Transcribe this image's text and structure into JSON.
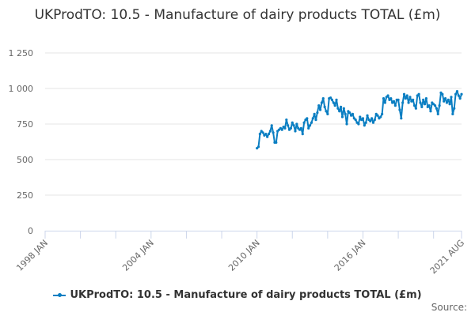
{
  "chart_data": {
    "type": "line",
    "title": "UKProdTO: 10.5 - Manufacture of dairy products TOTAL (£m)",
    "xlabel": "",
    "ylabel": "",
    "xlim": [
      1998.0,
      2021.5833
    ],
    "ylim": [
      0,
      1250
    ],
    "y_ticks": [
      0,
      250,
      500,
      750,
      1000,
      1250
    ],
    "y_tick_labels": [
      "0",
      "250",
      "500",
      "750",
      "1 000",
      "1 250"
    ],
    "x_tick_labels": [
      {
        "label": "1998 JAN",
        "x": 1998.0
      },
      {
        "label": "2004 JAN",
        "x": 2004.0
      },
      {
        "label": "2010 JAN",
        "x": 2010.0
      },
      {
        "label": "2016 JAN",
        "x": 2016.0
      },
      {
        "label": "2021 AUG",
        "x": 2021.5833
      }
    ],
    "grid": true,
    "legend": "bottom",
    "series": [
      {
        "name": "UKProdTO: 10.5 - Manufacture of dairy products TOTAL (£m)",
        "color": "#0a7ec2",
        "start": "2010 JAN",
        "start_x": 2010.0,
        "frequency": "monthly",
        "values": [
          580,
          590,
          680,
          700,
          690,
          670,
          680,
          660,
          680,
          700,
          740,
          690,
          620,
          620,
          700,
          710,
          720,
          710,
          730,
          720,
          780,
          740,
          710,
          720,
          760,
          740,
          700,
          750,
          720,
          710,
          720,
          680,
          760,
          780,
          790,
          720,
          740,
          760,
          790,
          820,
          780,
          830,
          880,
          850,
          900,
          930,
          870,
          840,
          820,
          930,
          935,
          920,
          900,
          880,
          920,
          860,
          840,
          870,
          800,
          860,
          820,
          750,
          840,
          830,
          810,
          820,
          790,
          780,
          760,
          750,
          800,
          780,
          790,
          740,
          760,
          810,
          780,
          770,
          790,
          760,
          780,
          820,
          810,
          790,
          800,
          820,
          930,
          900,
          940,
          950,
          920,
          930,
          900,
          910,
          880,
          920,
          920,
          850,
          790,
          900,
          960,
          930,
          950,
          900,
          940,
          910,
          920,
          880,
          860,
          950,
          960,
          900,
          870,
          920,
          890,
          930,
          870,
          880,
          840,
          900,
          890,
          880,
          860,
          820,
          880,
          970,
          960,
          910,
          930,
          900,
          920,
          890,
          940,
          820,
          860,
          960,
          980,
          950,
          930,
          960
        ]
      }
    ]
  },
  "legend_label": "UKProdTO: 10.5 - Manufacture of dairy products TOTAL (£m)",
  "source_label": "Source:"
}
